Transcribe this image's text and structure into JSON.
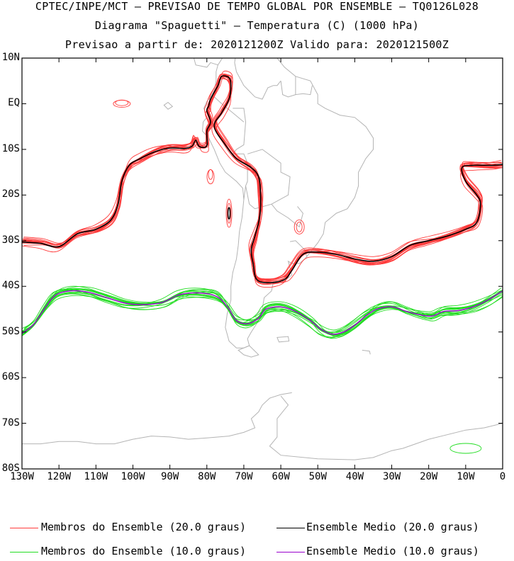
{
  "titles": {
    "line1": "CPTEC/INPE/MCT – PREVISAO DE TEMPO GLOBAL POR ENSEMBLE – TQ0126L028",
    "line2": "Diagrama \"Spaguetti\" – Temperatura (C) (1000 hPa)",
    "line3": "Previsao a partir de: 2020121200Z  Valido para: 2020121500Z"
  },
  "map": {
    "lon_range": [
      -130,
      0
    ],
    "lat_range": [
      -80,
      10
    ],
    "lat_ticks": [
      "10N",
      "EQ",
      "10S",
      "20S",
      "30S",
      "40S",
      "50S",
      "60S",
      "70S",
      "80S"
    ],
    "lon_ticks": [
      "130W",
      "120W",
      "110W",
      "100W",
      "90W",
      "80W",
      "70W",
      "60W",
      "50W",
      "40W",
      "30W",
      "20W",
      "10W",
      "0"
    ],
    "colors": {
      "land": "#b4b4b4",
      "member20": "#ff3a3a",
      "mean20": "#000000",
      "member10": "#22dd22",
      "mean10": "#9900cc"
    }
  },
  "legend": {
    "member20": "Membros do Ensemble (20.0 graus)",
    "mean20": "Ensemble Medio (20.0 graus)",
    "member10": "Membros do Ensemble (10.0 graus)",
    "mean10": "Ensemble Medio (10.0 graus)"
  },
  "chart_data": {
    "type": "line",
    "series": [
      {
        "name": "Ensemble Medio (20.0 graus)",
        "values": [
          [
            -130,
            -30.3
          ],
          [
            -125,
            -30.6
          ],
          [
            -120,
            -31.3
          ],
          [
            -115,
            -28.5
          ],
          [
            -110,
            -27.5
          ],
          [
            -106,
            -25.5
          ],
          [
            -104,
            -22
          ],
          [
            -103,
            -17
          ],
          [
            -101,
            -13.5
          ],
          [
            -98,
            -12
          ],
          [
            -94,
            -10.5
          ],
          [
            -90,
            -9.7
          ],
          [
            -86,
            -9.8
          ],
          [
            -84,
            -9.3
          ],
          [
            -83,
            -8
          ],
          [
            -82,
            -9.4
          ],
          [
            -80,
            -9.2
          ],
          [
            -80,
            -6
          ],
          [
            -79,
            -4
          ],
          [
            -80,
            -1.5
          ],
          [
            -79.5,
            -0.5
          ],
          [
            -79,
            1
          ],
          [
            -77,
            4
          ],
          [
            -76,
            6
          ],
          [
            -74,
            5.7
          ],
          [
            -73.5,
            4
          ],
          [
            -74,
            1
          ],
          [
            -76,
            -2
          ],
          [
            -78,
            -5
          ],
          [
            -75,
            -9
          ],
          [
            -72,
            -12
          ],
          [
            -68,
            -14
          ],
          [
            -66,
            -16
          ],
          [
            -65.5,
            -19.5
          ],
          [
            -65.5,
            -23
          ],
          [
            -66,
            -26
          ],
          [
            -67,
            -29
          ],
          [
            -68,
            -32
          ],
          [
            -67.5,
            -35
          ],
          [
            -66.5,
            -38.5
          ],
          [
            -63,
            -39.2
          ],
          [
            -59,
            -38.5
          ],
          [
            -57,
            -36.5
          ],
          [
            -54,
            -33
          ],
          [
            -50,
            -32.5
          ],
          [
            -45,
            -33
          ],
          [
            -40,
            -34
          ],
          [
            -35,
            -34.5
          ],
          [
            -30,
            -33.5
          ],
          [
            -25,
            -31
          ],
          [
            -20,
            -30
          ],
          [
            -15,
            -29
          ],
          [
            -10,
            -27.5
          ],
          [
            -7,
            -26
          ],
          [
            -6,
            -22
          ],
          [
            -7,
            -20
          ],
          [
            -10,
            -17
          ],
          [
            -11,
            -14
          ],
          [
            -8,
            -13.5
          ],
          [
            -3,
            -13.5
          ],
          [
            0,
            -13.3
          ]
        ]
      },
      {
        "name": "Ensemble Medio (10.0 graus)",
        "values": [
          [
            -130,
            -50.3
          ],
          [
            -127,
            -48.5
          ],
          [
            -124,
            -45
          ],
          [
            -121,
            -42
          ],
          [
            -117,
            -41
          ],
          [
            -112,
            -41.3
          ],
          [
            -107,
            -42.5
          ],
          [
            -102,
            -43.7
          ],
          [
            -97,
            -44
          ],
          [
            -92,
            -43.5
          ],
          [
            -88,
            -42
          ],
          [
            -85,
            -41.5
          ],
          [
            -81,
            -41.5
          ],
          [
            -78,
            -42
          ],
          [
            -76,
            -43
          ],
          [
            -74,
            -45
          ],
          [
            -72,
            -47.5
          ],
          [
            -69,
            -48.2
          ],
          [
            -66,
            -47
          ],
          [
            -64,
            -45
          ],
          [
            -60,
            -44.5
          ],
          [
            -56,
            -45.5
          ],
          [
            -52,
            -47.5
          ],
          [
            -49,
            -49.5
          ],
          [
            -46,
            -50.5
          ],
          [
            -43,
            -50
          ],
          [
            -40,
            -48.5
          ],
          [
            -37,
            -46.5
          ],
          [
            -34,
            -45
          ],
          [
            -30,
            -44.5
          ],
          [
            -26,
            -45.5
          ],
          [
            -22,
            -46.3
          ],
          [
            -19,
            -46.5
          ],
          [
            -16,
            -45.5
          ],
          [
            -12,
            -45.3
          ],
          [
            -8,
            -44.5
          ],
          [
            -4,
            -43
          ],
          [
            0,
            -41
          ]
        ]
      }
    ]
  }
}
